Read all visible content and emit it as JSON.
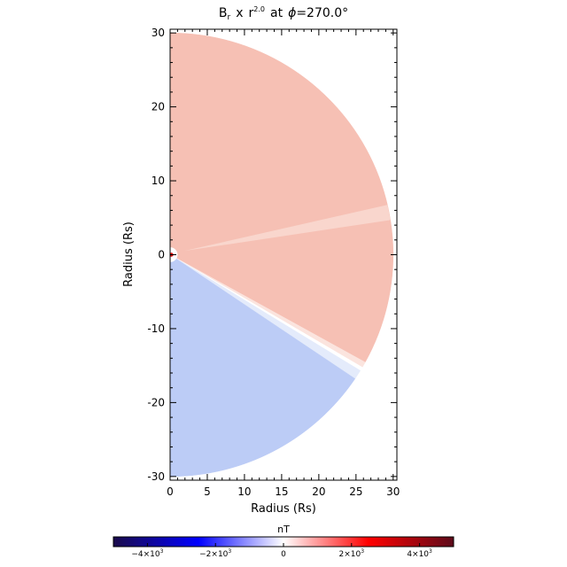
{
  "chart_data": {
    "type": "heatmap",
    "title_parts": {
      "symbol": "B",
      "subscript": "r",
      "times": "x",
      "r": "r",
      "exponent": "2.0",
      "at": "at",
      "phi": "ϕ",
      "value": "=270.0°"
    },
    "xlabel": "Radius (Rs)",
    "ylabel": "Radius (Rs)",
    "xlim": [
      0,
      30.5
    ],
    "ylim": [
      -30.5,
      30.5
    ],
    "x_ticks": [
      "0",
      "5",
      "10",
      "15",
      "20",
      "25",
      "30"
    ],
    "y_ticks": [
      "30",
      "20",
      "10",
      "0",
      "-10",
      "-20",
      "-30"
    ],
    "outer_radius": 30,
    "inner_radius": 1,
    "current_sheet_angle_deg": -31,
    "sectors": [
      {
        "from_deg": 90,
        "to_deg": -31,
        "polarity": "positive",
        "level": 0.25
      },
      {
        "from_deg": -31,
        "to_deg": -90,
        "polarity": "negative",
        "level": 0.25
      }
    ],
    "colorbar": {
      "label": "nT",
      "range": [
        -5000,
        5000
      ],
      "tick_values": [
        -4000,
        -2000,
        0,
        2000,
        4000
      ],
      "tick_labels": [
        {
          "mantissa": "−4×10",
          "exp": "3"
        },
        {
          "mantissa": "−2×10",
          "exp": "3"
        },
        {
          "mantissa": "0",
          "exp": ""
        },
        {
          "mantissa": "2×10",
          "exp": "3"
        },
        {
          "mantissa": "4×10",
          "exp": "3"
        }
      ],
      "colors": [
        "#1a0b4a",
        "#0000ff",
        "#ffffff",
        "#ff0000",
        "#5c0a1a"
      ]
    },
    "colors": {
      "positive": "#f6c0b4",
      "negative": "#bcccf6",
      "sheet": "#ffffff"
    }
  }
}
